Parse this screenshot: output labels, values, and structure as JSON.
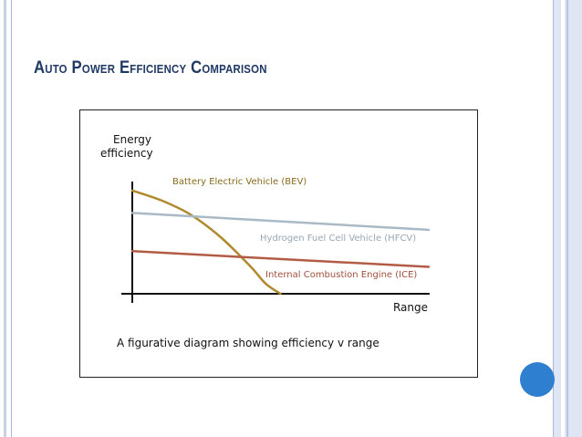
{
  "slide": {
    "title": "Auto Power Efficiency Comparison"
  },
  "chart_data": {
    "type": "line",
    "ylabel_lines": [
      "Energy",
      "efficiency"
    ],
    "xlabel": "Range",
    "caption": "A figurative diagram showing efficiency v range",
    "xlim": [
      0,
      100
    ],
    "ylim": [
      0,
      100
    ],
    "grid": false,
    "series": [
      {
        "name": "Battery Electric Vehicle (BEV)",
        "color": "#b08a2e",
        "x": [
          0,
          10,
          20,
          30,
          40,
          45,
          50
        ],
        "y": [
          92,
          83,
          70,
          50,
          24,
          9,
          0
        ]
      },
      {
        "name": "Hydrogen Fuel Cell Vehicle (HFCV)",
        "color": "#a9b9c6",
        "x": [
          0,
          100
        ],
        "y": [
          72,
          57
        ]
      },
      {
        "name": "Internal Combustion Engine (ICE)",
        "color": "#b25b45",
        "x": [
          0,
          100
        ],
        "y": [
          38,
          24
        ]
      }
    ]
  }
}
